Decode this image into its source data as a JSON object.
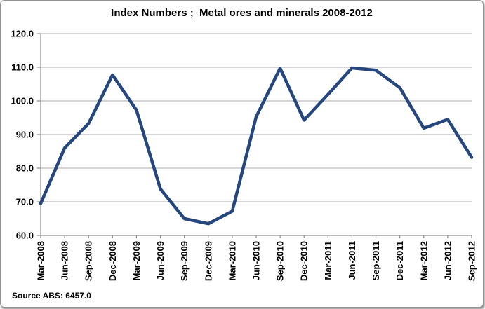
{
  "chart_data": {
    "type": "line",
    "title": "Index Numbers ;  Metal ores and minerals 2008-2012",
    "source_note": "Source ABS: 6457.0",
    "categories": [
      "Mar-2008",
      "Jun-2008",
      "Sep-2008",
      "Dec-2008",
      "Mar-2009",
      "Jun-2009",
      "Sep-2009",
      "Dec-2009",
      "Mar-2010",
      "Jun-2010",
      "Sep-2010",
      "Dec-2010",
      "Mar-2011",
      "Jun-2011",
      "Sep-2011",
      "Dec-2011",
      "Mar-2012",
      "Jun-2012",
      "Sep-2012"
    ],
    "series": [
      {
        "name": "Metal ores and minerals",
        "values": [
          69.5,
          86.0,
          93.3,
          107.7,
          97.3,
          73.8,
          65.0,
          63.5,
          67.2,
          95.3,
          109.7,
          94.3,
          101.9,
          109.8,
          109.1,
          103.9,
          91.9,
          94.5,
          83.2
        ]
      }
    ],
    "ylim": [
      60,
      120
    ],
    "ytick_step": 10,
    "ytick_labels": [
      "120.0",
      "110.0",
      "100.0",
      "90.0",
      "80.0",
      "70.0",
      "60.0"
    ],
    "xlabel": "",
    "ylabel": "",
    "grid": "horizontal",
    "legend": "none",
    "colors": {
      "line": "#26477E",
      "gridline": "#A8A8A8",
      "axis": "#8E8E8E",
      "text": "#000000",
      "background": "#FFFFFF"
    }
  }
}
